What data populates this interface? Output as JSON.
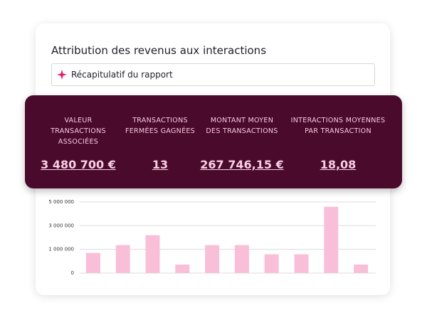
{
  "header": {
    "title": "Attribution des revenus aux interactions"
  },
  "summary": {
    "label": "Récapitulatif du rapport"
  },
  "kpis": [
    {
      "label": "VALEUR TRANSACTIONS ASSOCIÉES",
      "value": "3 480 700 €"
    },
    {
      "label": "TRANSACTIONS FERMÉES GAGNÉES",
      "value": "13"
    },
    {
      "label": "MONTANT MOYEN DES TRANSACTIONS",
      "value": "267 746,15 €"
    },
    {
      "label": "INTERACTIONS MOYENNES PAR TRANSACTION",
      "value": "18,08"
    }
  ],
  "chart_data": {
    "type": "bar",
    "color": "#f9bfd9",
    "grid": true,
    "values": [
      850000,
      1360000,
      2200000,
      360000,
      1360000,
      1360000,
      790000,
      790000,
      4600000,
      360000
    ],
    "ylim": [
      0,
      5000000
    ],
    "yticks": [
      0,
      {
        "value": 1000000,
        "label": "1 000 000"
      },
      {
        "value": 3000000,
        "label": "3 000 000"
      },
      {
        "value": 5000000,
        "label": "5 000 000"
      }
    ]
  }
}
